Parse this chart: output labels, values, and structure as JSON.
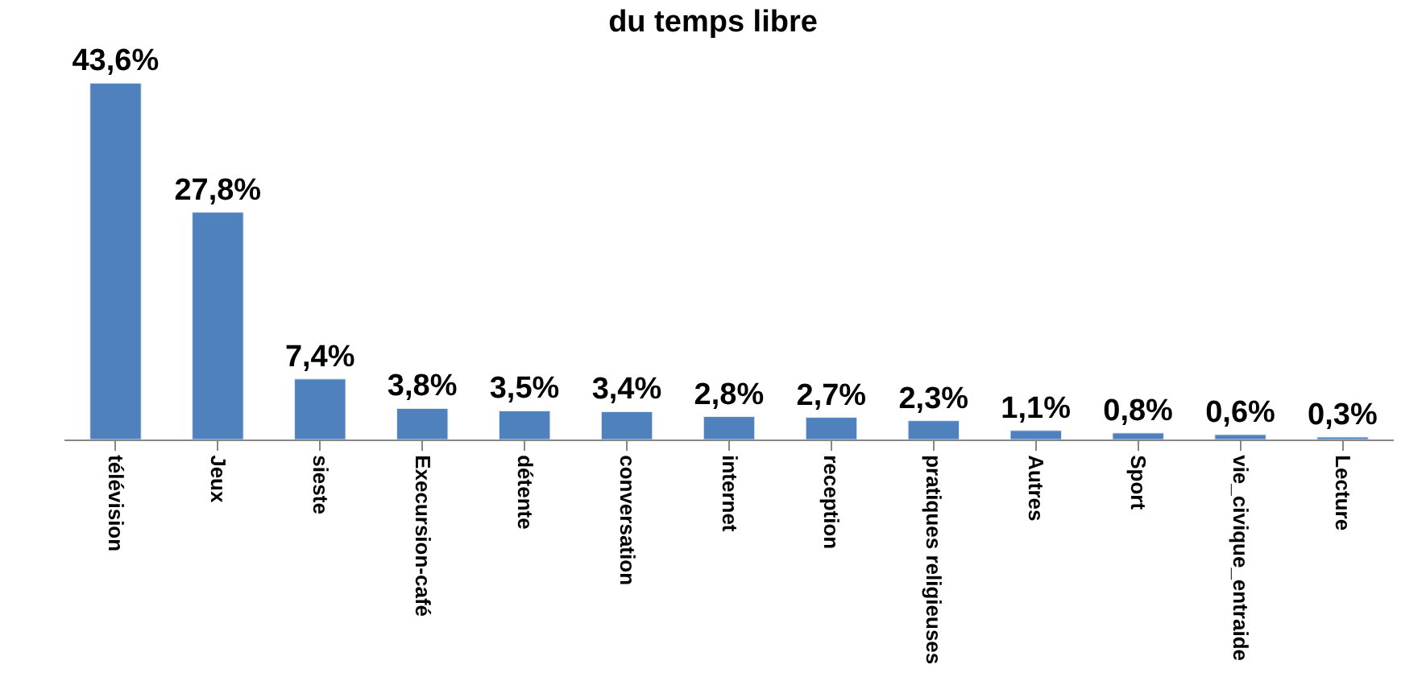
{
  "chart_data": {
    "type": "bar",
    "title": "du temps libre",
    "categories": [
      "télévision",
      "Jeux",
      "sieste",
      "Execursion-café",
      "détente",
      "conversation",
      "internet",
      "reception",
      "pratiques religieuses",
      "Autres",
      "Sport",
      "vie_civique_entraide",
      "Lecture"
    ],
    "values": [
      43.6,
      27.8,
      7.4,
      3.8,
      3.5,
      3.4,
      2.8,
      2.7,
      2.3,
      1.1,
      0.8,
      0.6,
      0.3
    ],
    "value_labels": [
      "43,6%",
      "27,8%",
      "7,4%",
      "3,8%",
      "3,5%",
      "3,4%",
      "2,8%",
      "2,7%",
      "2,3%",
      "1,1%",
      "0,8%",
      "0,6%",
      "0,3%"
    ],
    "color": "#4f81bd",
    "tick_labels": "x"
  }
}
